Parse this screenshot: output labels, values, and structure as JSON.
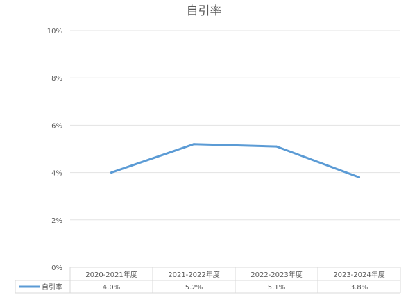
{
  "chart_data": {
    "type": "line",
    "title": "自引率",
    "categories": [
      "2020-2021年度",
      "2021-2022年度",
      "2022-2023年度",
      "2023-2024年度"
    ],
    "series": [
      {
        "name": "自引率",
        "values": [
          4.0,
          5.2,
          5.1,
          3.8
        ],
        "labels": [
          "4.0%",
          "5.2%",
          "5.1%",
          "3.8%"
        ],
        "color": "#5b9bd5"
      }
    ],
    "yticks": [
      "0%",
      "2%",
      "4%",
      "6%",
      "8%",
      "10%"
    ],
    "ylim": [
      0,
      10
    ],
    "grid": true,
    "legend": "data-table"
  }
}
